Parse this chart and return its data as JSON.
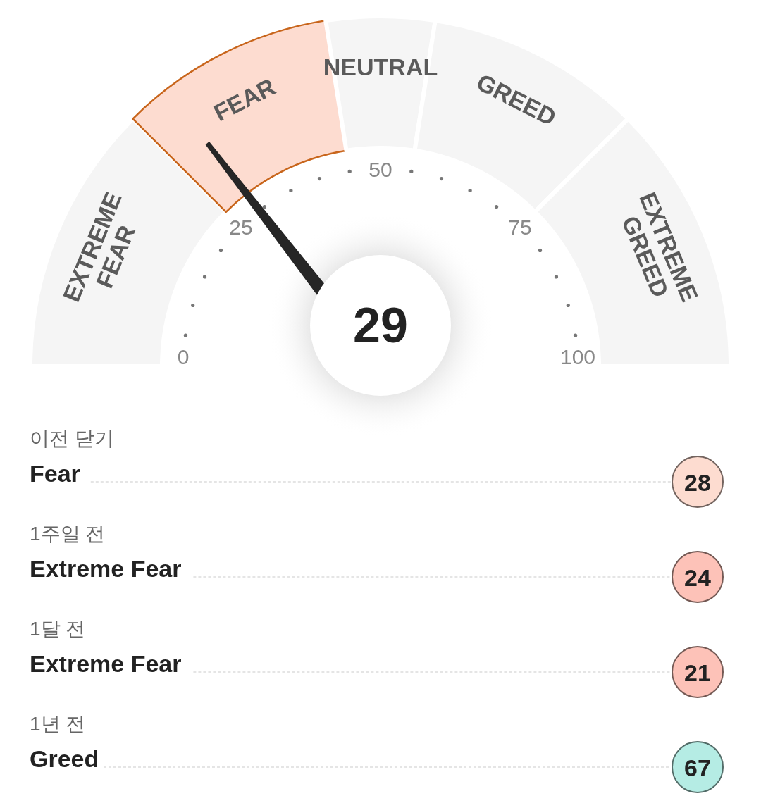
{
  "chart_data": [
    {
      "type": "donut",
      "categories": [
        "EXTREME FEAR",
        "FEAR",
        "NEUTRAL",
        "GREED",
        "EXTREME GREED"
      ],
      "values": [
        25,
        20,
        10,
        20,
        25
      ],
      "colors": [
        "#f5f5f5",
        "#fddcd0",
        "#f5f5f5",
        "#f5f5f5",
        "#f5f5f5"
      ],
      "needle": "FEAR",
      "annotations": [
        "29",
        "0",
        "25",
        "50",
        "75",
        "100"
      ]
    },
    {
      "type": "other",
      "categories": [
        "이전 닫기",
        "1주일 전",
        "1달 전",
        "1년 전"
      ],
      "values": [
        28,
        24,
        21,
        67
      ],
      "colors": [
        "#fddcd0",
        "#fdc2b8",
        "#fdc2b8",
        "#b5ece4"
      ],
      "annotations": [
        "Fear",
        "Extreme Fear",
        "Extreme Fear",
        "Greed"
      ],
      "data_labels": true
    }
  ]
}
